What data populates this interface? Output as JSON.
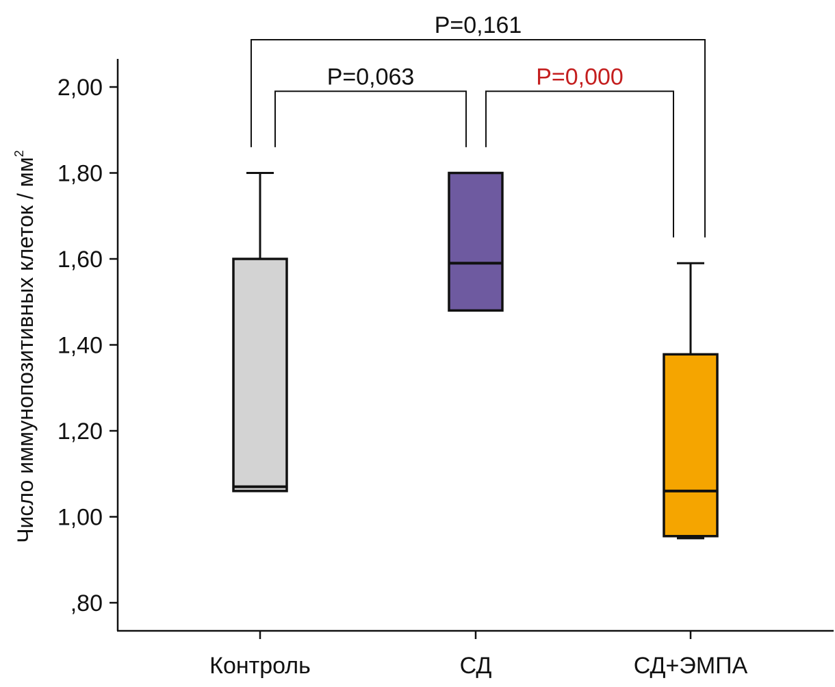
{
  "chart_data": {
    "type": "box",
    "ylabel": "Число иммунопозитивных клеток / мм",
    "ylabel_superscript": "2",
    "ylim": [
      0.75,
      2.07
    ],
    "yticks": [
      {
        "value": 0.8,
        "label": ",80"
      },
      {
        "value": 1.0,
        "label": "1,00"
      },
      {
        "value": 1.2,
        "label": "1,20"
      },
      {
        "value": 1.4,
        "label": "1,40"
      },
      {
        "value": 1.6,
        "label": "1,60"
      },
      {
        "value": 1.8,
        "label": "1,80"
      },
      {
        "value": 2.0,
        "label": "2,00"
      }
    ],
    "categories": [
      "Контроль",
      "СД",
      "СД+ЭМПА"
    ],
    "boxes": [
      {
        "name": "Контроль",
        "whisker_low": 1.06,
        "q1": 1.06,
        "median": 1.07,
        "q3": 1.6,
        "whisker_high": 1.8,
        "color": "#d3d3d3"
      },
      {
        "name": "СД",
        "whisker_low": 1.48,
        "q1": 1.48,
        "median": 1.59,
        "q3": 1.8,
        "whisker_high": 1.8,
        "color": "#6e5aa0"
      },
      {
        "name": "СД+ЭМПА",
        "whisker_low": 0.95,
        "q1": 0.955,
        "median": 1.06,
        "q3": 1.378,
        "whisker_high": 1.59,
        "color": "#f5a500"
      }
    ],
    "comparisons": [
      {
        "from": 0,
        "to": 2,
        "label": "P=0,161",
        "color": "#111111",
        "level": 2.11,
        "drop_left": 1.86,
        "drop_right": 1.65
      },
      {
        "from": 0,
        "to": 1,
        "label": "P=0,063",
        "color": "#111111",
        "level": 1.99,
        "drop_left": 1.86,
        "drop_right": 1.86
      },
      {
        "from": 1,
        "to": 2,
        "label": "P=0,000",
        "color": "#c41e1e",
        "level": 1.99,
        "drop_left": 1.86,
        "drop_right": 1.65
      }
    ]
  }
}
